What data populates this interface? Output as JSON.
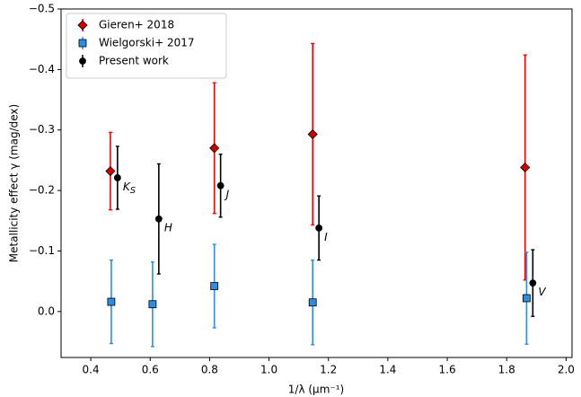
{
  "chart_data": {
    "type": "errorbar",
    "x_label": "1/λ (μm⁻¹)",
    "y_label": "Metallicity effect γ (mag/dex)",
    "xlim": [
      0.3,
      2.02
    ],
    "ylim": [
      -0.5,
      0.076
    ],
    "y_inverted": true,
    "xticks": [
      {
        "value": 0.4,
        "label": "0.4"
      },
      {
        "value": 0.6,
        "label": "0.6"
      },
      {
        "value": 0.8,
        "label": "0.8"
      },
      {
        "value": 1.0,
        "label": "1.0"
      },
      {
        "value": 1.2,
        "label": "1.2"
      },
      {
        "value": 1.4,
        "label": "1.4"
      },
      {
        "value": 1.6,
        "label": "1.6"
      },
      {
        "value": 1.8,
        "label": "1.8"
      },
      {
        "value": 2.0,
        "label": "2.0"
      }
    ],
    "yticks": [
      {
        "value": -0.5,
        "label": "−0.5"
      },
      {
        "value": -0.4,
        "label": "−0.4"
      },
      {
        "value": -0.3,
        "label": "−0.3"
      },
      {
        "value": -0.2,
        "label": "−0.2"
      },
      {
        "value": -0.1,
        "label": "−0.1"
      },
      {
        "value": 0.0,
        "label": "0.0"
      }
    ],
    "legend": "upper left",
    "series": [
      {
        "name": "Gieren+ 2018",
        "color": "#d40000",
        "ecolor": "#ff0000",
        "marker": "diamond",
        "x": [
          0.466,
          0.816,
          1.147,
          1.862
        ],
        "values": [
          -0.232,
          -0.27,
          -0.293,
          -0.238
        ],
        "errors": [
          0.064,
          0.108,
          0.15,
          0.186
        ]
      },
      {
        "name": "Wielgorski+ 2017",
        "color": "#2b8de3",
        "ecolor": "#2b8de3",
        "marker": "square",
        "x": [
          0.469,
          0.608,
          0.816,
          1.147,
          1.867
        ],
        "values": [
          -0.016,
          -0.012,
          -0.042,
          -0.015,
          -0.022
        ],
        "errors": [
          0.069,
          0.07,
          0.069,
          0.07,
          0.076
        ]
      },
      {
        "name": "Present work",
        "color": "#000000",
        "ecolor": "#000000",
        "marker": "circle",
        "x": [
          0.49,
          0.629,
          0.837,
          1.168,
          1.888
        ],
        "values": [
          -0.221,
          -0.153,
          -0.208,
          -0.138,
          -0.047
        ],
        "errors": [
          0.052,
          0.091,
          0.052,
          0.053,
          0.055
        ]
      }
    ],
    "annotations": [
      {
        "text": "K",
        "sub": "S"
      },
      {
        "text": "H"
      },
      {
        "text": "J"
      },
      {
        "text": "I"
      },
      {
        "text": "V"
      }
    ]
  }
}
